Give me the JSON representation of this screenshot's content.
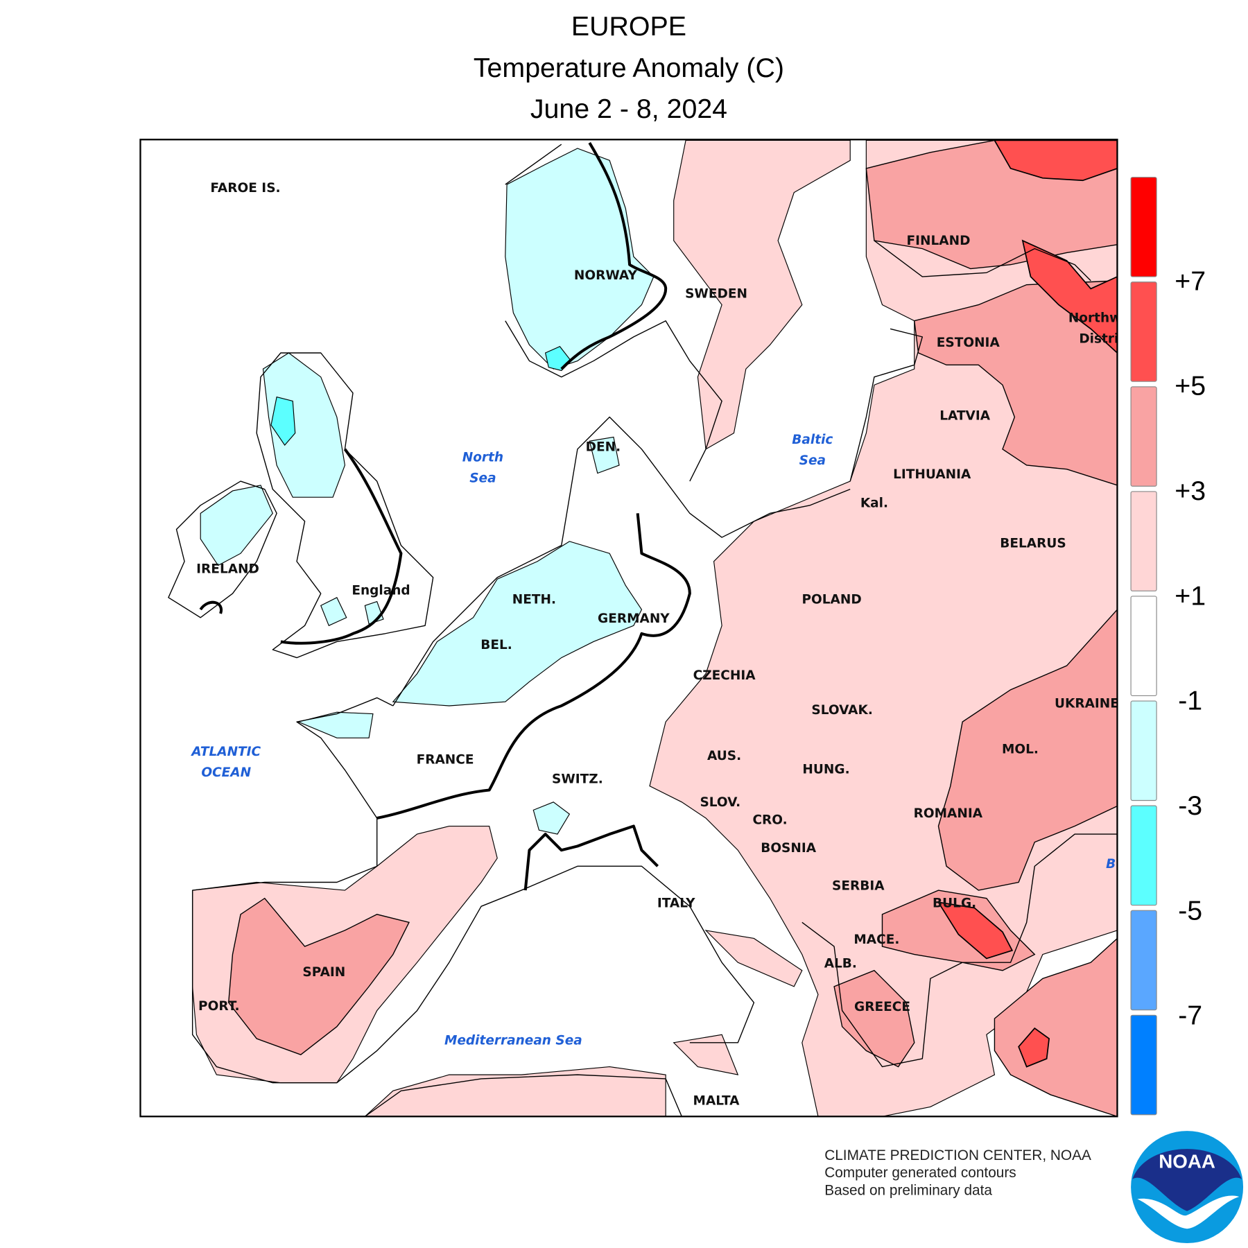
{
  "header": {
    "region": "EUROPE",
    "title": "Temperature Anomaly (C)",
    "period": "June 2 - 8, 2024"
  },
  "map": {
    "labels": [
      "FAROE IS.",
      "NORWAY",
      "SWEDEN",
      "FINLAND",
      "ESTONIA",
      "LATVIA",
      "LITHUANIA",
      "Kal.",
      "BELARUS",
      "POLAND",
      "GERMANY",
      "NETH.",
      "BEL.",
      "DEN.",
      "England",
      "IRELAND",
      "FRANCE",
      "SWITZ.",
      "CZECHIA",
      "SLOVAK.",
      "AUS.",
      "HUNG.",
      "SLOV.",
      "CRO.",
      "BOSNIA",
      "SERBIA",
      "ROMANIA",
      "UKRAINE",
      "MOL.",
      "BULG.",
      "MACE.",
      "ALB.",
      "GREECE",
      "ITALY",
      "SPAIN",
      "PORT.",
      "MALTA",
      "Northw",
      "Distri"
    ],
    "sea_labels": [
      [
        "North",
        "Sea"
      ],
      [
        "Baltic",
        "Sea"
      ],
      [
        "ATLANTIC",
        "OCEAN"
      ],
      [
        "Mediterranean Sea"
      ],
      [
        "B"
      ]
    ]
  },
  "legend": {
    "colors": [
      "#ff0000",
      "#ff5050",
      "#f9a3a3",
      "#ffd6d6",
      "#ffffff",
      "#ccffff",
      "#5cffff",
      "#5aa7ff",
      "#0080ff"
    ],
    "ticks": [
      {
        "value": 7,
        "label": "+7"
      },
      {
        "value": 5,
        "label": "+5"
      },
      {
        "value": 3,
        "label": "+3"
      },
      {
        "value": 1,
        "label": "+1"
      },
      -1,
      -3,
      -5,
      -7
    ]
  },
  "footer": {
    "lines": [
      "CLIMATE PREDICTION CENTER, NOAA",
      "Computer generated contours",
      "Based on preliminary data"
    ],
    "logo": "NOAA"
  }
}
